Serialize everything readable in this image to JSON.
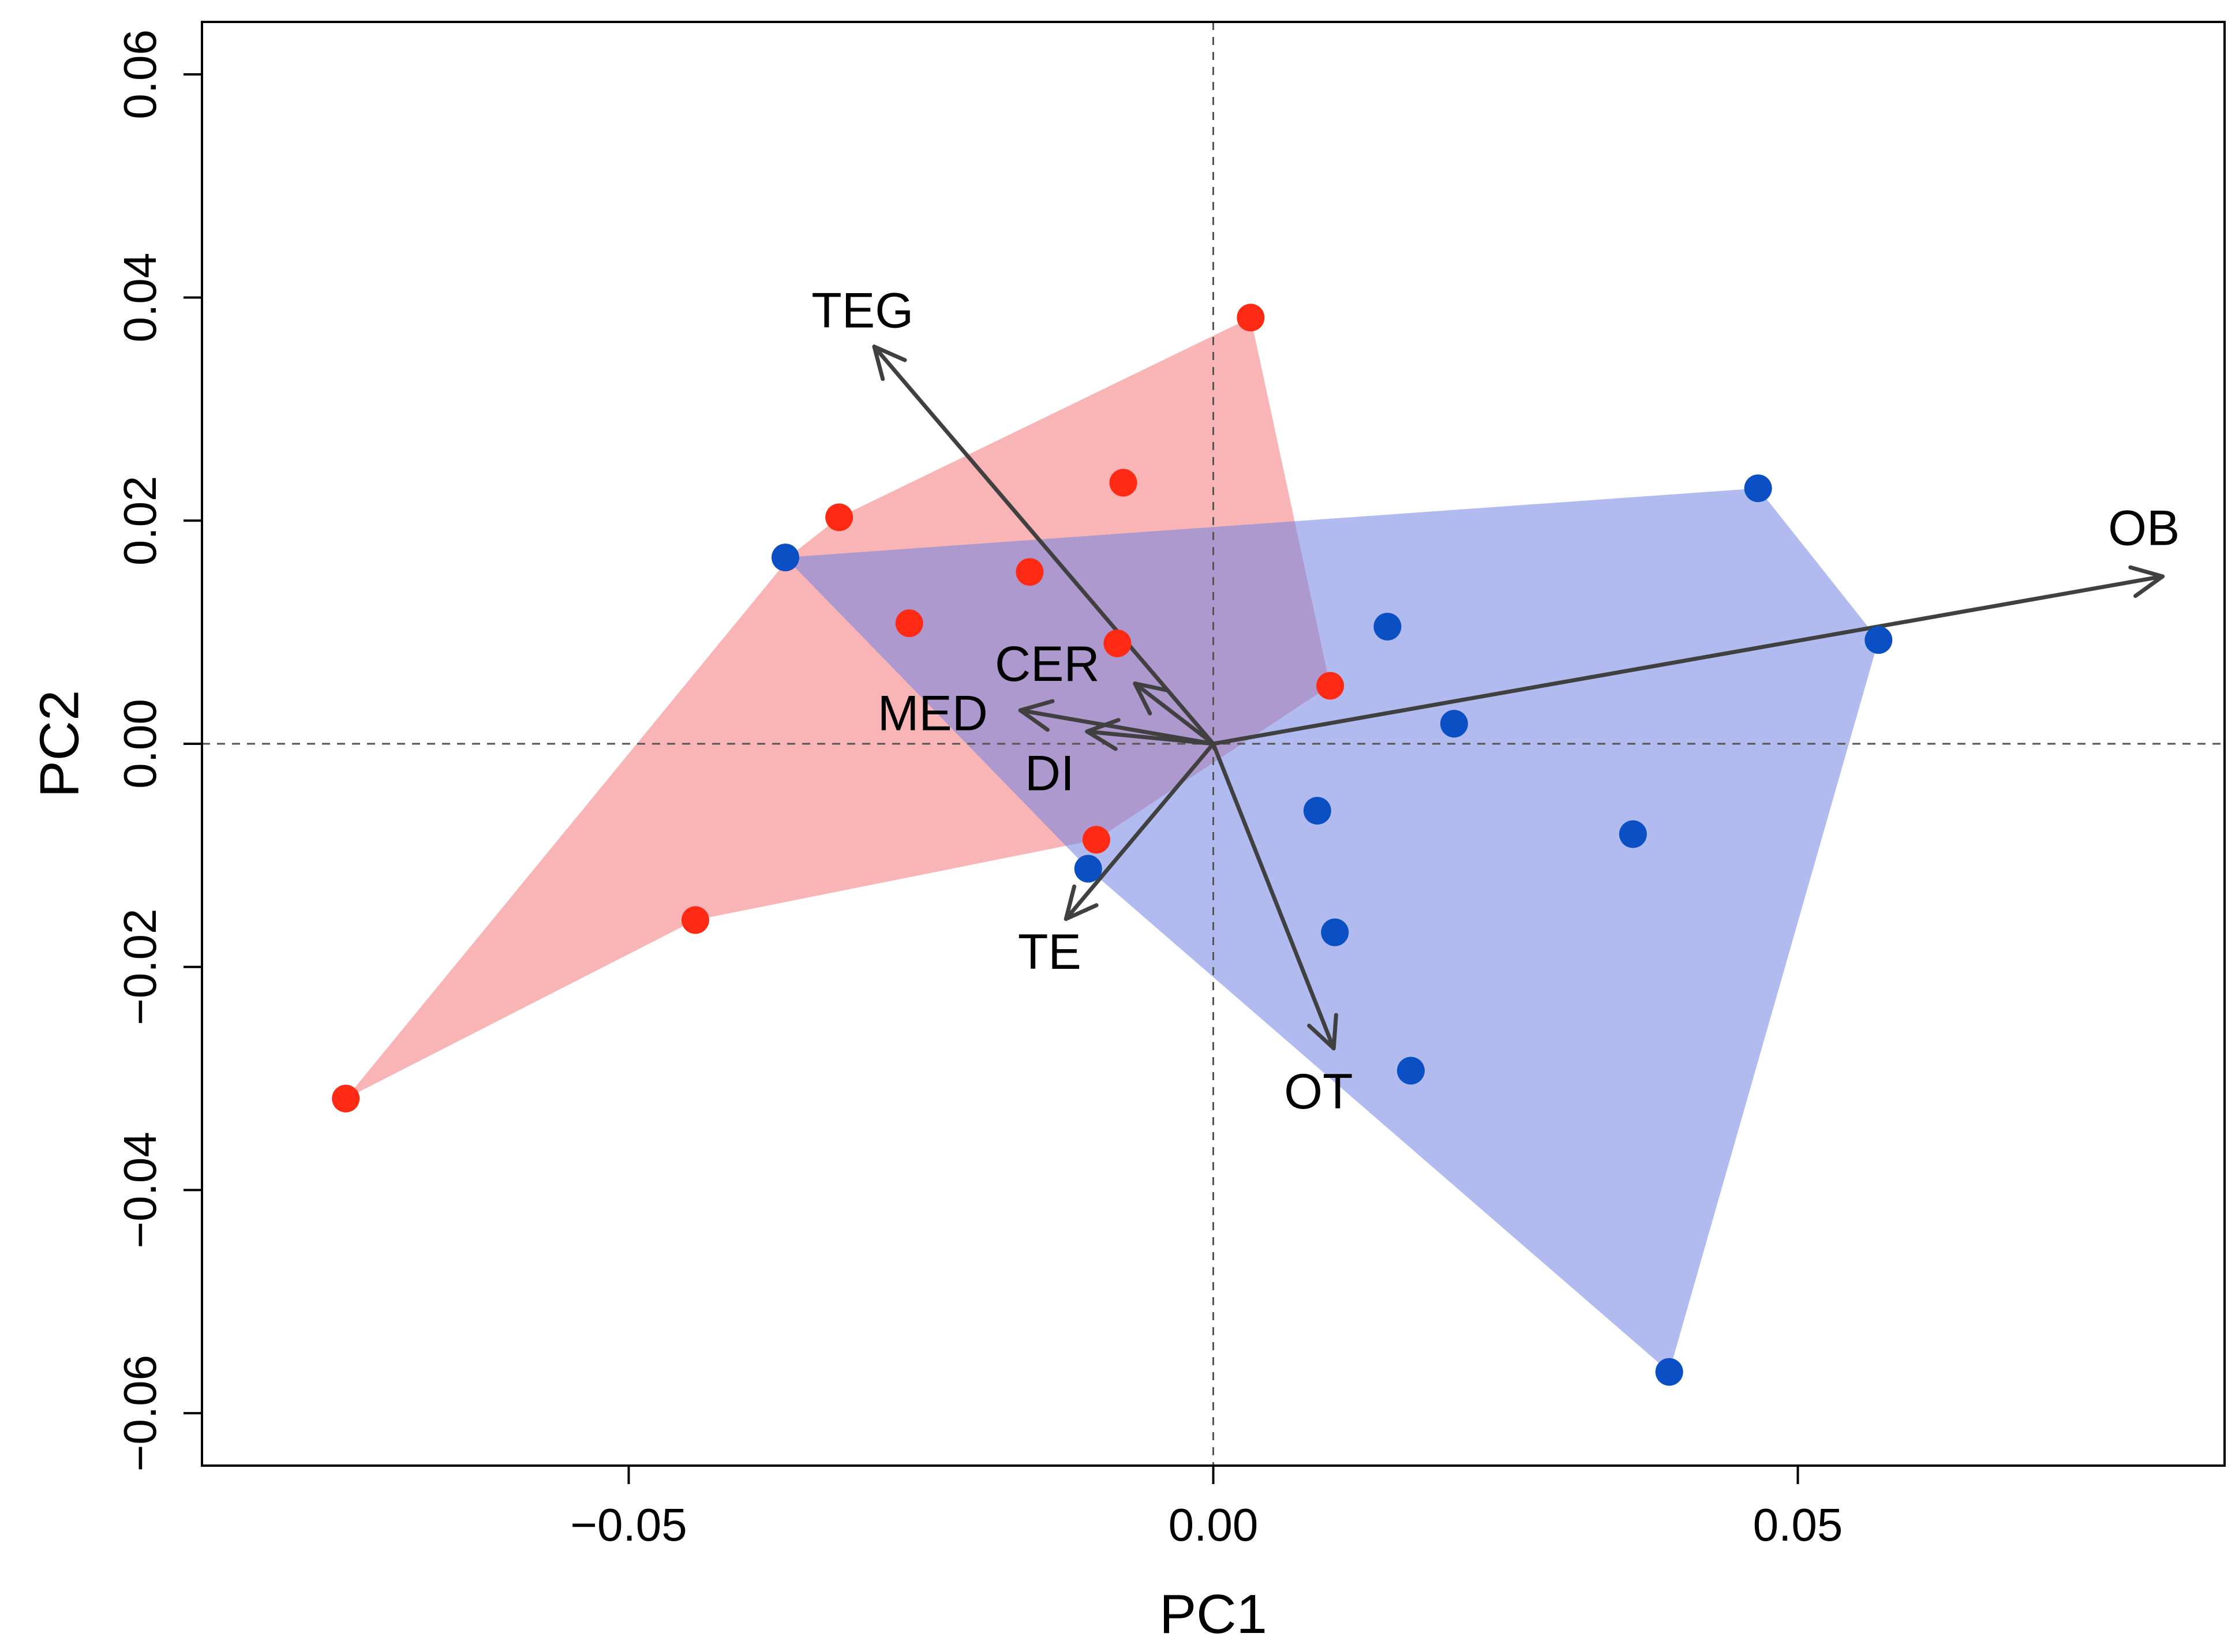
{
  "chart_data": {
    "type": "scatter",
    "title": "",
    "xlabel": "PC1",
    "ylabel": "PC2",
    "xlim": [
      -0.0865,
      0.0865
    ],
    "ylim": [
      -0.0647,
      0.0647
    ],
    "x_ticks": [
      -0.05,
      0.0,
      0.05
    ],
    "x_tick_labels": [
      "−0.05",
      "0.00",
      "0.05"
    ],
    "y_ticks": [
      -0.06,
      -0.04,
      -0.02,
      0.0,
      0.02,
      0.04,
      0.06
    ],
    "y_tick_labels": [
      "−0.06",
      "−0.04",
      "−0.02",
      "0.00",
      "0.02",
      "0.04",
      "0.06"
    ],
    "reference_lines": {
      "x": 0.0,
      "y": 0.0,
      "style": "dashed"
    },
    "grid": false,
    "series": [
      {
        "name": "red group",
        "color": "#ff2a14",
        "hull_color": "#f4777a",
        "points": [
          {
            "x": 0.0032,
            "y": 0.0382
          },
          {
            "x": -0.032,
            "y": 0.0203
          },
          {
            "x": -0.0077,
            "y": 0.0234
          },
          {
            "x": -0.0157,
            "y": 0.0154
          },
          {
            "x": -0.026,
            "y": 0.0108
          },
          {
            "x": -0.0082,
            "y": 0.009
          },
          {
            "x": 0.01,
            "y": 0.0052
          },
          {
            "x": -0.01,
            "y": -0.0086
          },
          {
            "x": -0.0443,
            "y": -0.0158
          },
          {
            "x": -0.0742,
            "y": -0.0318
          }
        ]
      },
      {
        "name": "blue group",
        "color": "#0a4fc4",
        "hull_color": "#7183e3",
        "points": [
          {
            "x": -0.0366,
            "y": 0.0167
          },
          {
            "x": 0.0466,
            "y": 0.0229
          },
          {
            "x": 0.0569,
            "y": 0.0093
          },
          {
            "x": 0.0149,
            "y": 0.0105
          },
          {
            "x": 0.0206,
            "y": 0.0018
          },
          {
            "x": 0.0089,
            "y": -0.006
          },
          {
            "x": 0.0359,
            "y": -0.0081
          },
          {
            "x": -0.0107,
            "y": -0.0112
          },
          {
            "x": 0.0104,
            "y": -0.0169
          },
          {
            "x": 0.0169,
            "y": -0.0293
          },
          {
            "x": 0.039,
            "y": -0.0563
          }
        ]
      }
    ],
    "hulls": [
      {
        "series": "red group",
        "vertices": [
          {
            "x": -0.0742,
            "y": -0.0318
          },
          {
            "x": -0.036,
            "y": 0.017
          },
          {
            "x": -0.032,
            "y": 0.0203
          },
          {
            "x": 0.0032,
            "y": 0.0382
          },
          {
            "x": 0.01,
            "y": 0.0052
          },
          {
            "x": -0.01,
            "y": -0.0086
          },
          {
            "x": -0.0443,
            "y": -0.0158
          }
        ]
      },
      {
        "series": "blue group",
        "vertices": [
          {
            "x": -0.0366,
            "y": 0.0167
          },
          {
            "x": 0.0466,
            "y": 0.0229
          },
          {
            "x": 0.0569,
            "y": 0.0093
          },
          {
            "x": 0.039,
            "y": -0.0563
          },
          {
            "x": -0.0107,
            "y": -0.0112
          }
        ]
      }
    ],
    "loadings": [
      {
        "name": "TEG",
        "x": -0.029,
        "y": 0.0356,
        "label_x": -0.03,
        "label_y": 0.0385
      },
      {
        "name": "OB",
        "x": 0.0812,
        "y": 0.015,
        "label_x": 0.0796,
        "label_y": 0.019
      },
      {
        "name": "CER",
        "x": -0.0067,
        "y": 0.0054,
        "label_x": -0.0142,
        "label_y": 0.0068
      },
      {
        "name": "MED",
        "x": -0.0165,
        "y": 0.003,
        "label_x": -0.024,
        "label_y": 0.0024
      },
      {
        "name": "DI",
        "x": -0.0108,
        "y": 0.0011,
        "label_x": -0.014,
        "label_y": -0.003
      },
      {
        "name": "TE",
        "x": -0.0126,
        "y": -0.0157,
        "label_x": -0.014,
        "label_y": -0.019
      },
      {
        "name": "OT",
        "x": 0.0103,
        "y": -0.0273,
        "label_x": 0.009,
        "label_y": -0.0315
      }
    ],
    "arrow_color": "#404040"
  }
}
